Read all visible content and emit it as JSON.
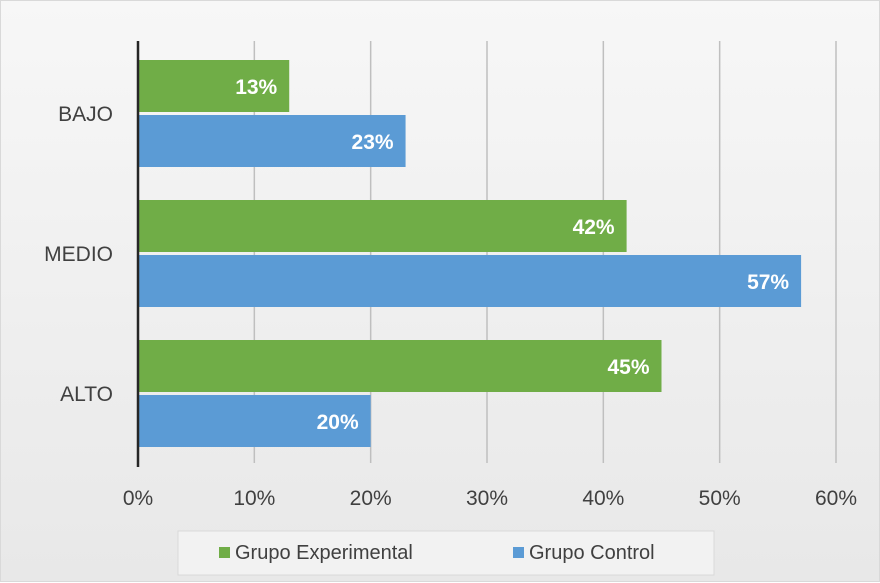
{
  "chart_data": {
    "type": "bar",
    "orientation": "horizontal",
    "categories": [
      "BAJO",
      "MEDIO",
      "ALTO"
    ],
    "series": [
      {
        "name": "Grupo Experimental",
        "color": "#70ad47",
        "values": [
          13,
          42,
          45
        ]
      },
      {
        "name": "Grupo Control",
        "color": "#5b9bd5",
        "values": [
          23,
          57,
          20
        ]
      }
    ],
    "data_labels": [
      [
        "13%",
        "42%",
        "45%"
      ],
      [
        "23%",
        "57%",
        "20%"
      ]
    ],
    "x_ticks": [
      "0%",
      "10%",
      "20%",
      "30%",
      "40%",
      "50%",
      "60%"
    ],
    "xlim": [
      0,
      60
    ],
    "title": "",
    "xlabel": "",
    "ylabel": "",
    "grid": true,
    "legend_position": "bottom"
  }
}
